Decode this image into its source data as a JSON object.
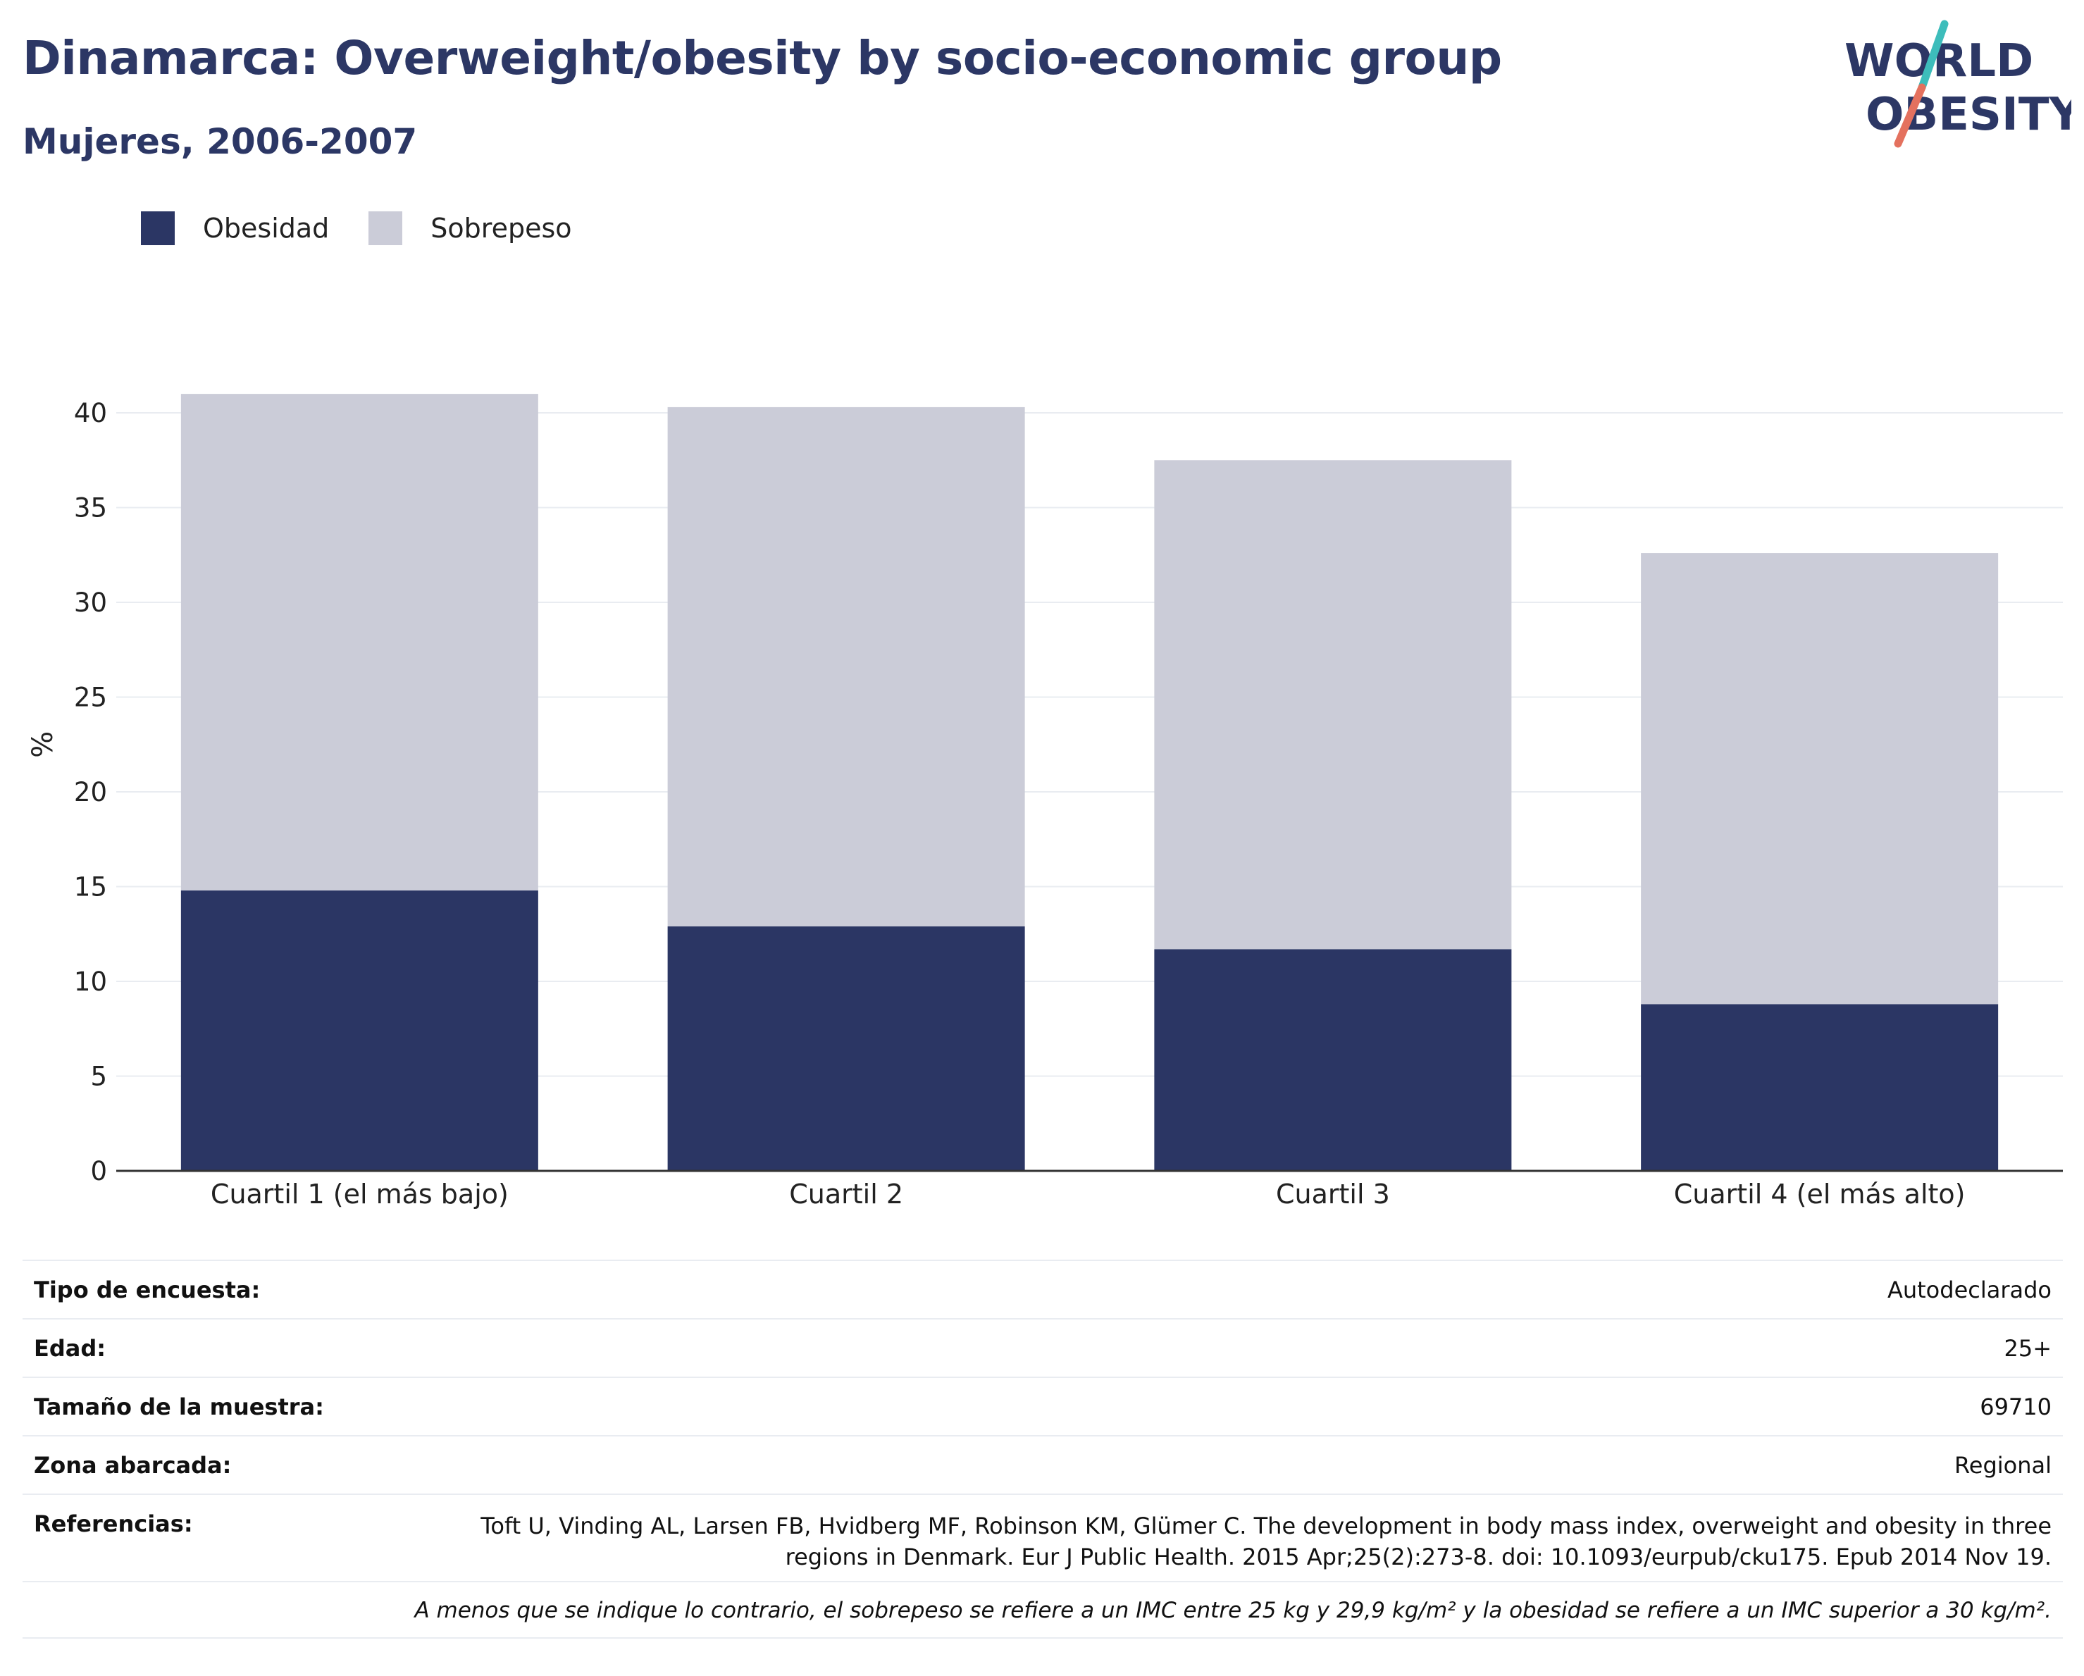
{
  "header": {
    "title": "Dinamarca: Overweight/obesity by socio-economic group",
    "subtitle": "Mujeres, 2006-2007"
  },
  "logo": {
    "line1": "WORLD",
    "line2": "OBESITY",
    "icon": "world-obesity-logo"
  },
  "colors": {
    "obesidad": "#2b3664",
    "sobrepeso": "#cbccd8",
    "title": "#2c3765",
    "grid": "#e9ecf1",
    "logo_teal": "#3dbdbb",
    "logo_red": "#e4715e"
  },
  "legend": [
    {
      "label": "Obesidad",
      "color": "#2b3664"
    },
    {
      "label": "Sobrepeso",
      "color": "#cbccd8"
    }
  ],
  "chart_data": {
    "type": "bar",
    "stacked": true,
    "categories": [
      "Cuartil 1 (el más bajo)",
      "Cuartil 2",
      "Cuartil 3",
      "Cuartil 4 (el más alto)"
    ],
    "series": [
      {
        "name": "Obesidad",
        "values": [
          14.8,
          12.9,
          11.7,
          8.8
        ]
      },
      {
        "name": "Sobrepeso",
        "values": [
          26.2,
          27.4,
          25.8,
          23.8
        ]
      }
    ],
    "title": "Dinamarca: Overweight/obesity by socio-economic group",
    "subtitle": "Mujeres, 2006-2007",
    "xlabel": "",
    "ylabel": "%",
    "ylim": [
      0,
      42
    ],
    "yticks": [
      0,
      5,
      10,
      15,
      20,
      25,
      30,
      35,
      40
    ],
    "grid": true,
    "legend_position": "top-left"
  },
  "info": {
    "rows": [
      {
        "label": "Tipo de encuesta:",
        "value": "Autodeclarado"
      },
      {
        "label": "Edad:",
        "value": "25+"
      },
      {
        "label": "Tamaño de la muestra:",
        "value": "69710"
      },
      {
        "label": "Zona abarcada:",
        "value": "Regional"
      }
    ],
    "references_label": "Referencias:",
    "references_value": "Toft U, Vinding AL, Larsen FB, Hvidberg MF, Robinson KM, Glümer C. The development in body mass index, overweight and obesity in three regions in Denmark. Eur J Public Health. 2015 Apr;25(2):273-8. doi: 10.1093/eurpub/cku175. Epub 2014 Nov 19.",
    "note": "A menos que se indique lo contrario, el sobrepeso se refiere a un IMC entre 25 kg y 29,9 kg/m² y la obesidad se refiere a un IMC superior a 30 kg/m²."
  }
}
